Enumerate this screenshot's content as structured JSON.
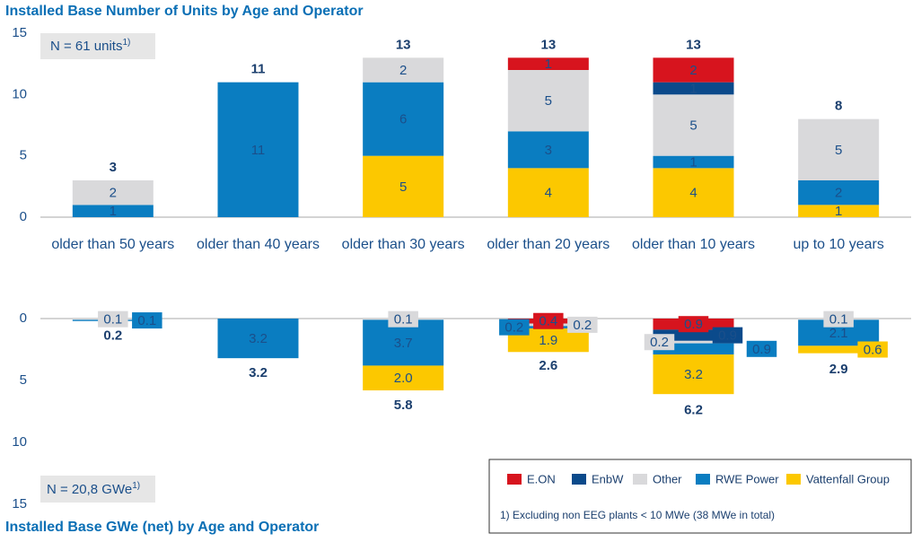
{
  "chart_data": [
    {
      "type": "bar",
      "title": "Installed Base Number of Units by Age and Operator",
      "annotation": "N = 61 units",
      "annotation_sup": "1)",
      "categories": [
        "older than 50 years",
        "older than 40 years",
        "older than 30 years",
        "older than 20 years",
        "older than 10 years",
        "up to 10 years"
      ],
      "series": [
        {
          "name": "E.ON",
          "color": "#d7141e",
          "values": [
            null,
            null,
            null,
            1,
            2,
            null
          ]
        },
        {
          "name": "EnbW",
          "color": "#0b4a8b",
          "values": [
            null,
            null,
            null,
            null,
            1,
            null
          ]
        },
        {
          "name": "Other",
          "color": "#d9d9db",
          "values": [
            2,
            null,
            2,
            5,
            5,
            5
          ]
        },
        {
          "name": "RWE Power",
          "color": "#0a7dc1",
          "values": [
            1,
            11,
            6,
            3,
            1,
            2
          ]
        },
        {
          "name": "Vattenfall Group",
          "color": "#fcc800",
          "values": [
            null,
            null,
            5,
            4,
            4,
            1
          ]
        }
      ],
      "totals": [
        3,
        11,
        13,
        13,
        13,
        8
      ],
      "ylim": [
        0,
        15
      ],
      "yticks": [
        0,
        5,
        10,
        15
      ],
      "stacked": true
    },
    {
      "type": "bar",
      "title": "Installed Base GWe (net) by Age and Operator",
      "annotation": "N = 20,8 GWe",
      "annotation_sup": "1)",
      "series": [
        {
          "color": "#d7141e",
          "values": [
            null,
            null,
            null,
            0.4,
            0.9,
            null
          ]
        },
        {
          "color": "#0b4a8b",
          "values": [
            null,
            null,
            null,
            null,
            0.9,
            null
          ]
        },
        {
          "color": "#d9d9db",
          "values": [
            0.1,
            null,
            0.1,
            0.2,
            0.2,
            0.1
          ]
        },
        {
          "color": "#0a7dc1",
          "values": [
            0.1,
            3.2,
            3.7,
            0.2,
            0.9,
            2.1
          ]
        },
        {
          "color": "#fcc800",
          "values": [
            null,
            null,
            2,
            1.9,
            3.2,
            0.6
          ],
          "value_labels": [
            null,
            null,
            "2.0",
            "1.9",
            "3.2",
            "0.6"
          ]
        }
      ],
      "totals": [
        0.2,
        3.2,
        5.8,
        2.6,
        6.2,
        2.9
      ],
      "ylim": [
        0,
        15
      ],
      "yticks": [
        0,
        5,
        10,
        15
      ],
      "y_inverted": true,
      "stacked": true,
      "footnote": "1) Excluding non EEG plants < 10 MWe (38 MWe in total)"
    }
  ]
}
